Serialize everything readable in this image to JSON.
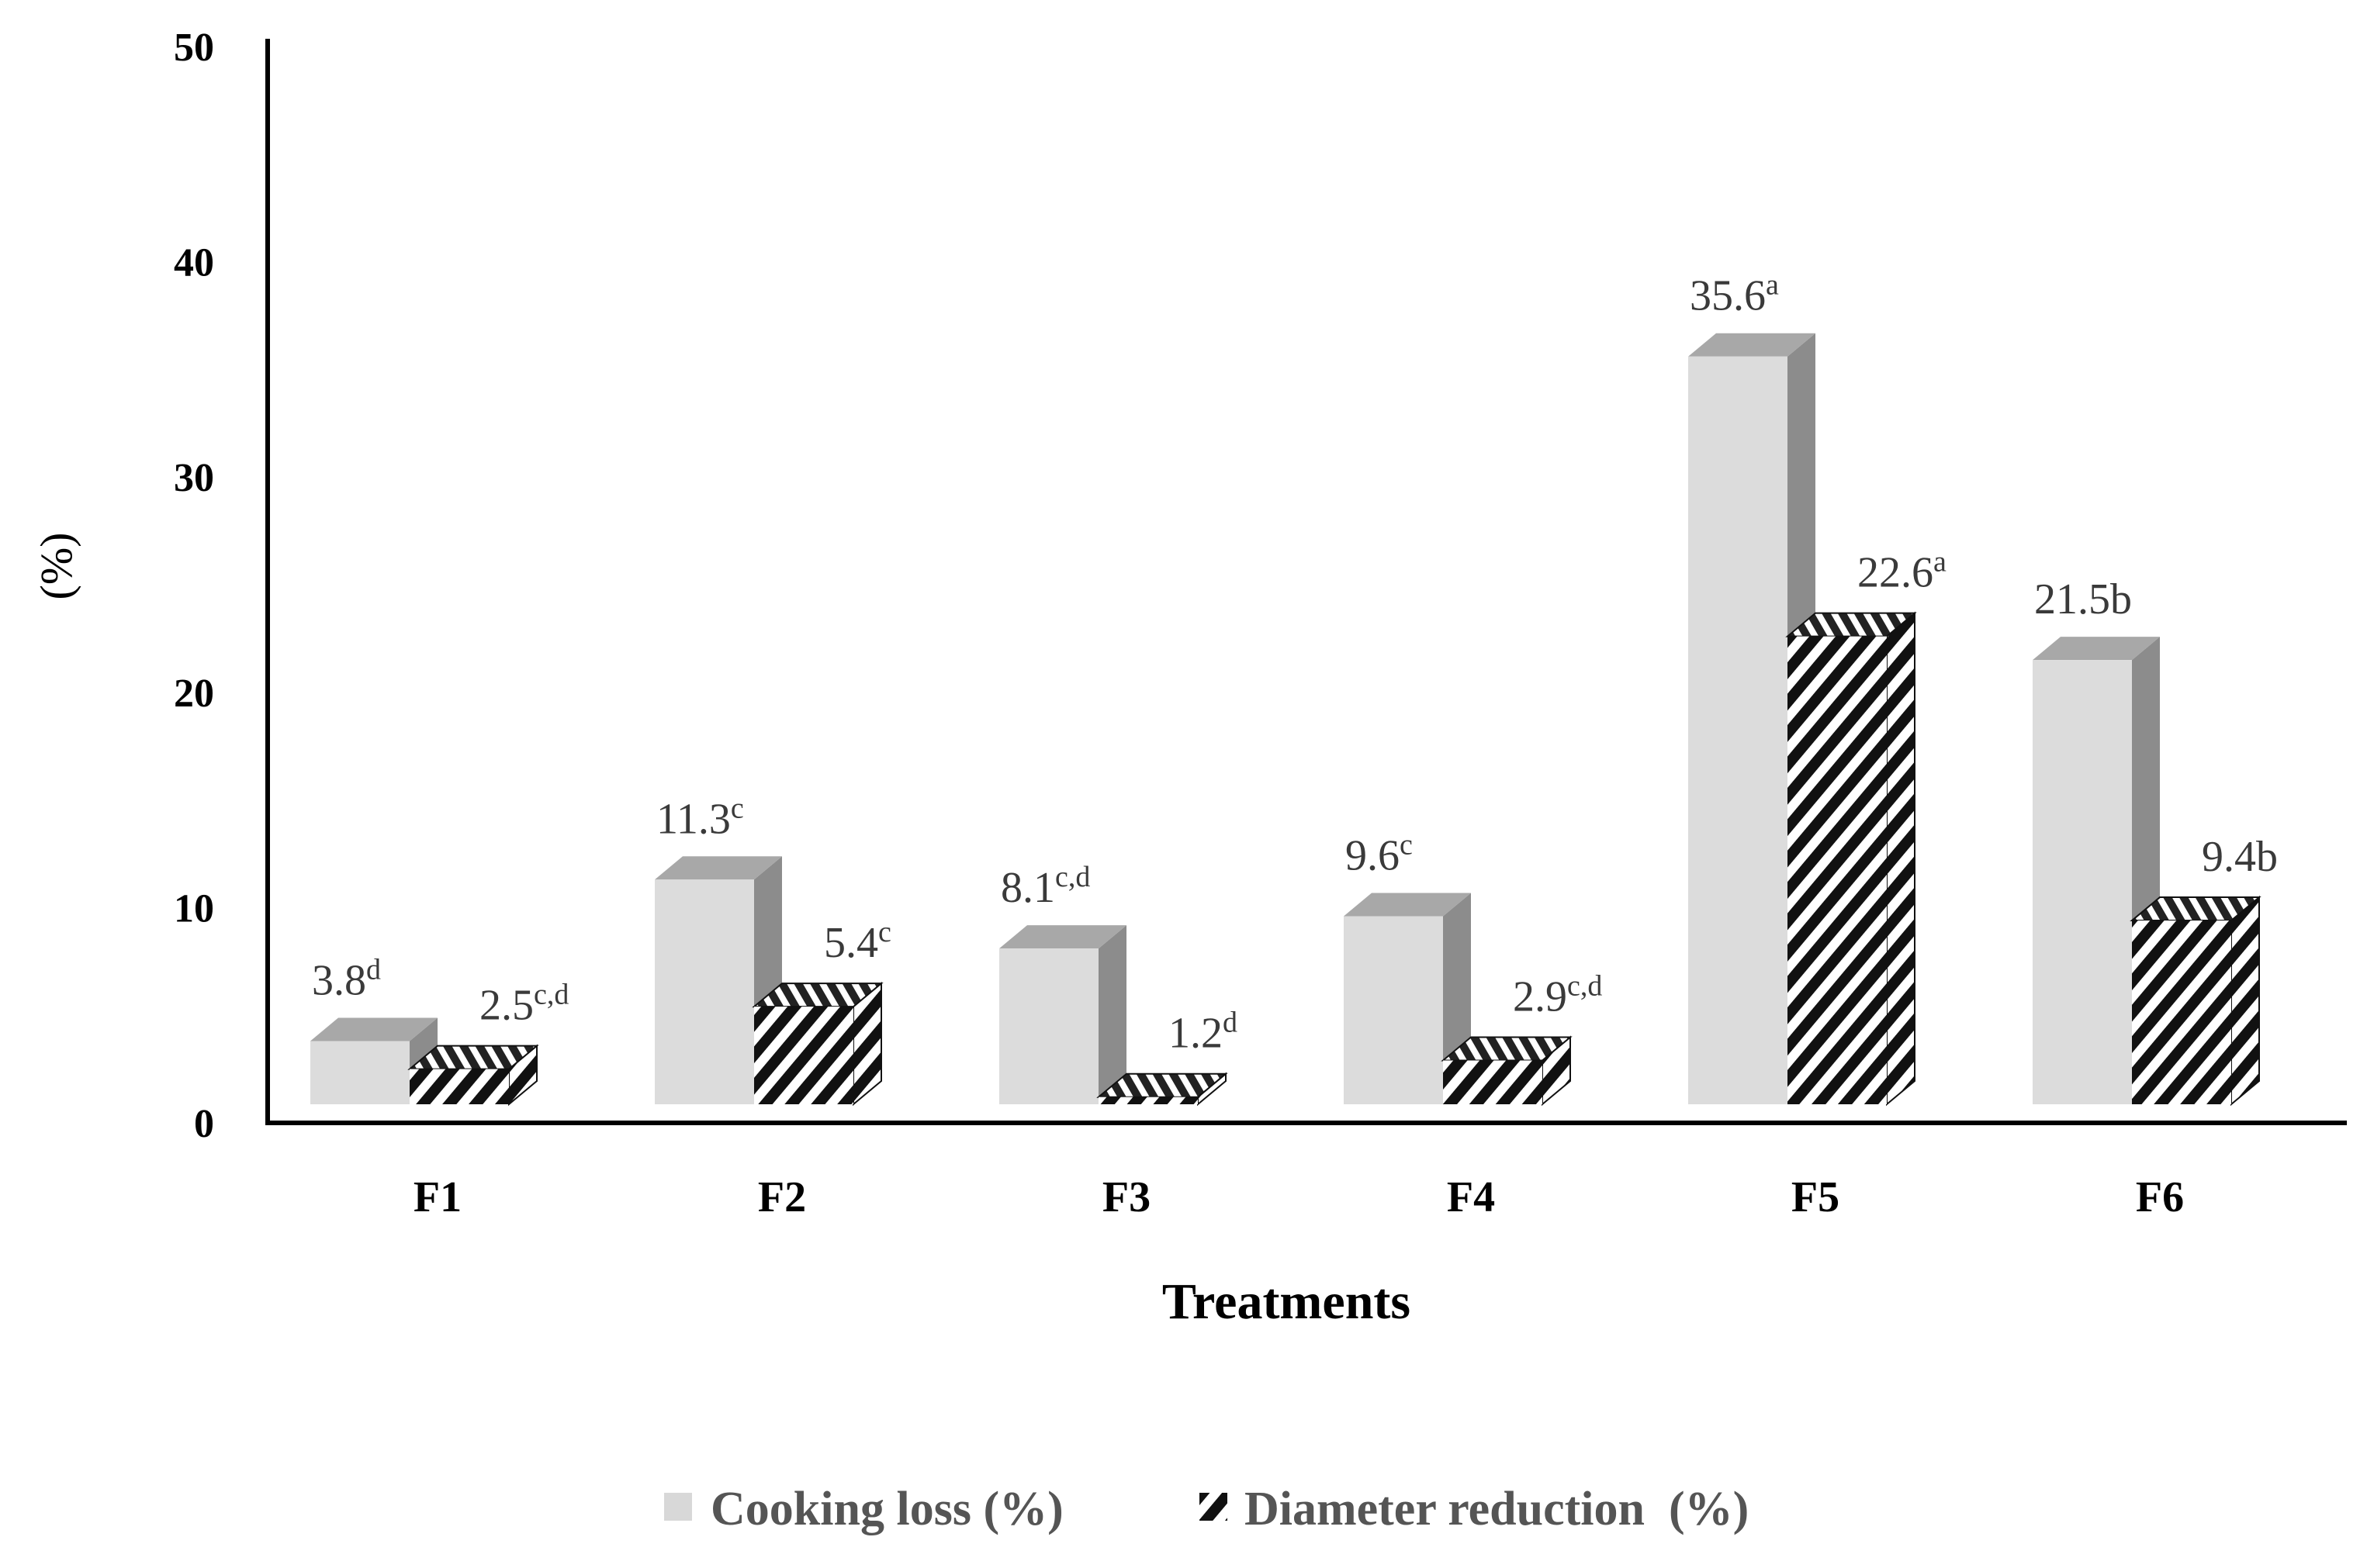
{
  "chart_data": {
    "type": "bar",
    "xlabel": "Treatments",
    "ylabel": "(%)",
    "ylim": [
      0,
      50
    ],
    "yticks": [
      0,
      10,
      20,
      30,
      40,
      50
    ],
    "categories": [
      "F1",
      "F2",
      "F3",
      "F4",
      "F5",
      "F6"
    ],
    "series": [
      {
        "name": "Cooking loss (%)",
        "values": [
          3.8,
          11.3,
          8.1,
          9.6,
          35.6,
          21.5
        ],
        "labels": [
          "3.8",
          "11.3",
          "8.1",
          "9.6",
          "35.6",
          "21.5b"
        ],
        "sup": [
          "d",
          "c",
          "c,d",
          "c",
          "a",
          ""
        ],
        "fill": "#dcdcdc",
        "side": "#8c8c8c",
        "top": "#a8a8a8"
      },
      {
        "name": "Diameter reduction  (%)",
        "values": [
          2.5,
          5.4,
          1.2,
          2.9,
          22.6,
          9.4
        ],
        "labels": [
          "2.5",
          "5.4",
          "1.2",
          "2.9",
          "22.6",
          "9.4b"
        ],
        "sup": [
          "c,d",
          "c",
          "d",
          "c,d",
          "a",
          ""
        ],
        "pattern": "black-white-stripes"
      }
    ],
    "grid": false,
    "legend": "bottom-center"
  }
}
